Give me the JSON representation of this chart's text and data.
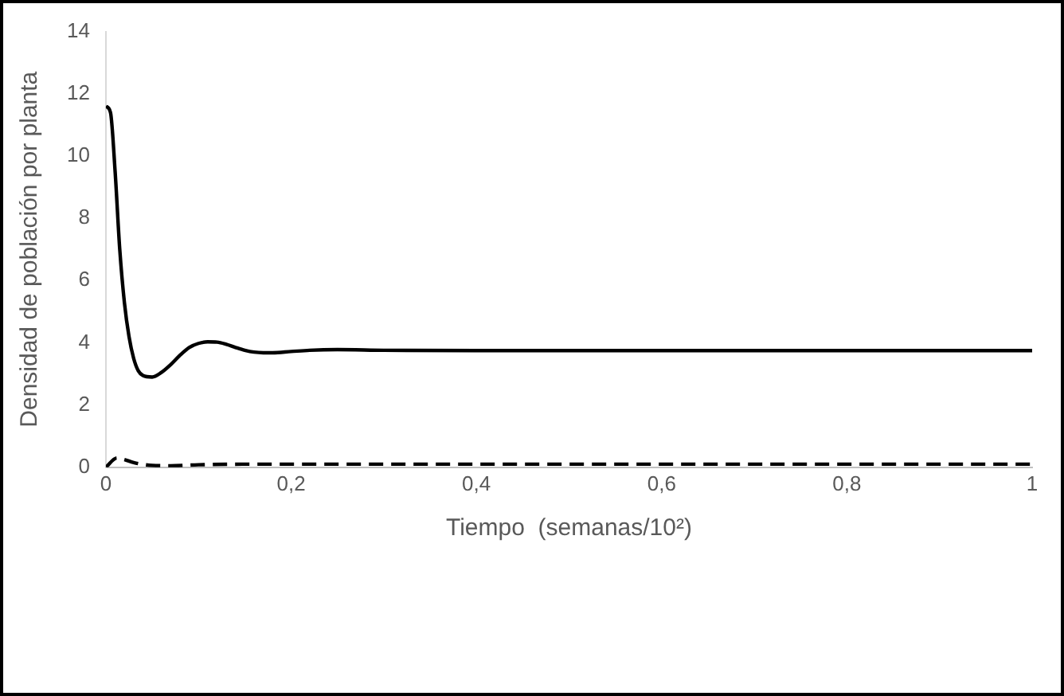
{
  "chart_data": {
    "type": "line",
    "xlabel": "Tiempo  (semanas/10²)",
    "ylabel": "Densidad de población por planta",
    "xlim": [
      0,
      1
    ],
    "xticks": [
      0,
      {
        "value": 0.2,
        "label": "0,2"
      },
      {
        "value": 0.4,
        "label": "0,4"
      },
      {
        "value": 0.6,
        "label": "0,6"
      },
      {
        "value": 0.8,
        "label": "0,8"
      },
      1
    ],
    "ylim": [
      0,
      14
    ],
    "yticks": [
      0,
      2,
      4,
      6,
      8,
      10,
      12,
      14
    ],
    "grid": false,
    "legend": false,
    "marker": "none",
    "series": [
      {
        "color": "#000000",
        "line_style": "solid",
        "x": [
          0,
          0.005,
          0.01,
          0.015,
          0.02,
          0.025,
          0.03,
          0.035,
          0.04,
          0.05,
          0.06,
          0.07,
          0.08,
          0.09,
          0.1,
          0.11,
          0.12,
          0.13,
          0.14,
          0.15,
          0.16,
          0.17,
          0.18,
          0.2,
          0.22,
          0.25,
          0.3,
          0.4,
          0.6,
          0.8,
          1
        ],
        "values": [
          11.6,
          11.4,
          9.5,
          7.0,
          5.3,
          4.2,
          3.5,
          3.1,
          2.95,
          2.9,
          3.05,
          3.3,
          3.6,
          3.85,
          3.98,
          4.03,
          4.02,
          3.95,
          3.85,
          3.76,
          3.7,
          3.68,
          3.68,
          3.72,
          3.76,
          3.78,
          3.76,
          3.75,
          3.75,
          3.75,
          3.75
        ]
      },
      {
        "color": "#000000",
        "line_style": "dashed",
        "x": [
          0,
          0.012,
          0.02,
          0.03,
          0.05,
          0.07,
          0.1,
          0.15,
          0.3,
          0.6,
          1
        ],
        "values": [
          0,
          0.3,
          0.25,
          0.15,
          0.06,
          0.05,
          0.08,
          0.1,
          0.1,
          0.1,
          0.1
        ]
      }
    ]
  }
}
